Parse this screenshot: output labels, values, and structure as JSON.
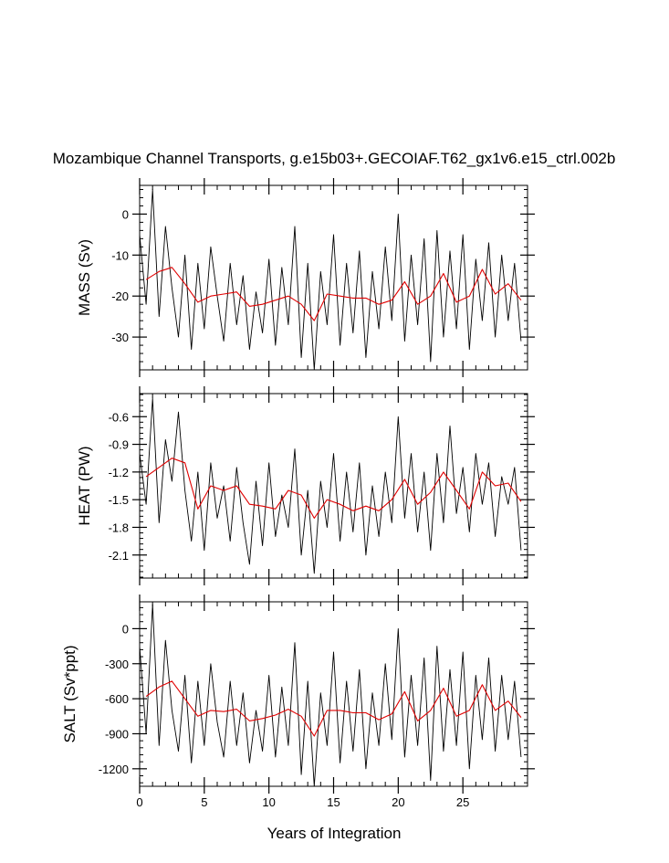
{
  "title": "Mozambique Channel Transports, g.e15b03+.GECOIAF.T62_gx1v6.e15_ctrl.002b",
  "xlabel": "Years of Integration",
  "colors": {
    "monthly": "#000000",
    "annual": "#e00000",
    "frame": "#000000"
  },
  "chart_data": [
    {
      "type": "line",
      "ylabel": "MASS (Sv)",
      "xlim": [
        0,
        30
      ],
      "ylim": [
        -38,
        7
      ],
      "yticks": [
        0,
        -10,
        -20,
        -30
      ],
      "ytick_labels": [
        "0",
        "-10",
        "-20",
        "-30"
      ],
      "xticks": [
        0,
        5,
        10,
        15,
        20,
        25
      ],
      "xtick_labels": [],
      "series": [
        {
          "key": "monthly",
          "x": [
            0.0,
            0.5,
            1.0,
            1.5,
            2.0,
            2.5,
            3.0,
            3.5,
            4.0,
            4.5,
            5.0,
            5.5,
            6.0,
            6.5,
            7.0,
            7.5,
            8.0,
            8.5,
            9.0,
            9.5,
            10.0,
            10.5,
            11.0,
            11.5,
            12.0,
            12.5,
            13.0,
            13.5,
            14.0,
            14.5,
            15.0,
            15.5,
            16.0,
            16.5,
            17.0,
            17.5,
            18.0,
            18.5,
            19.0,
            19.5,
            20.0,
            20.5,
            21.0,
            21.5,
            22.0,
            22.5,
            23.0,
            23.5,
            24.0,
            24.5,
            25.0,
            25.5,
            26.0,
            26.5,
            27.0,
            27.5,
            28.0,
            28.5,
            29.0,
            29.5
          ],
          "y": [
            -5,
            -22,
            6,
            -25,
            -3,
            -18,
            -30,
            -10,
            -33,
            -12,
            -28,
            -8,
            -20,
            -31,
            -12,
            -27,
            -15,
            -33,
            -19,
            -29,
            -11,
            -32,
            -13,
            -27,
            -3,
            -35,
            -12,
            -38,
            -14,
            -27,
            -5,
            -32,
            -12,
            -29,
            -9,
            -35,
            -14,
            -28,
            -8,
            -26,
            0,
            -31,
            -10,
            -27,
            -6,
            -36,
            -4,
            -30,
            -9,
            -28,
            -5,
            -33,
            -11,
            -26,
            -7,
            -30,
            -10,
            -26,
            -12,
            -31
          ]
        },
        {
          "key": "annual",
          "x": [
            0.5,
            1.5,
            2.5,
            3.5,
            4.5,
            5.5,
            6.5,
            7.5,
            8.5,
            9.5,
            10.5,
            11.5,
            12.5,
            13.5,
            14.5,
            15.5,
            16.5,
            17.5,
            18.5,
            19.5,
            20.5,
            21.5,
            22.5,
            23.5,
            24.5,
            25.5,
            26.5,
            27.5,
            28.5,
            29.5
          ],
          "y": [
            -16,
            -14,
            -13,
            -17,
            -21.5,
            -20,
            -19.5,
            -19,
            -22.5,
            -22,
            -21,
            -20,
            -22,
            -26,
            -19.5,
            -20,
            -20.5,
            -20.5,
            -22,
            -21,
            -16.5,
            -22,
            -20,
            -14.5,
            -21.5,
            -20,
            -13.5,
            -19.5,
            -17,
            -21
          ]
        }
      ]
    },
    {
      "type": "line",
      "ylabel": "HEAT (PW)",
      "xlim": [
        0,
        30
      ],
      "ylim": [
        -2.35,
        -0.35
      ],
      "yticks": [
        -0.6,
        -0.9,
        -1.2,
        -1.5,
        -1.8,
        -2.1
      ],
      "ytick_labels": [
        "-0.6",
        "-0.9",
        "-1.2",
        "-1.5",
        "-1.8",
        "-2.1"
      ],
      "xticks": [
        0,
        5,
        10,
        15,
        20,
        25
      ],
      "xtick_labels": [],
      "series": [
        {
          "key": "monthly",
          "x": [
            0.0,
            0.5,
            1.0,
            1.5,
            2.0,
            2.5,
            3.0,
            3.5,
            4.0,
            4.5,
            5.0,
            5.5,
            6.0,
            6.5,
            7.0,
            7.5,
            8.0,
            8.5,
            9.0,
            9.5,
            10.0,
            10.5,
            11.0,
            11.5,
            12.0,
            12.5,
            13.0,
            13.5,
            14.0,
            14.5,
            15.0,
            15.5,
            16.0,
            16.5,
            17.0,
            17.5,
            18.0,
            18.5,
            19.0,
            19.5,
            20.0,
            20.5,
            21.0,
            21.5,
            22.0,
            22.5,
            23.0,
            23.5,
            24.0,
            24.5,
            25.0,
            25.5,
            26.0,
            26.5,
            27.0,
            27.5,
            28.0,
            28.5,
            29.0,
            29.5
          ],
          "y": [
            -1.0,
            -1.55,
            -0.4,
            -1.75,
            -0.85,
            -1.3,
            -0.55,
            -1.4,
            -1.95,
            -1.2,
            -2.05,
            -1.1,
            -1.7,
            -1.35,
            -1.95,
            -1.15,
            -1.75,
            -2.2,
            -1.3,
            -2.0,
            -1.1,
            -1.9,
            -1.45,
            -1.8,
            -0.95,
            -2.1,
            -1.4,
            -2.3,
            -1.3,
            -1.8,
            -1.0,
            -1.95,
            -1.2,
            -1.85,
            -1.1,
            -2.1,
            -1.35,
            -1.9,
            -1.2,
            -1.75,
            -0.6,
            -1.7,
            -1.0,
            -1.85,
            -1.2,
            -2.05,
            -1.0,
            -1.75,
            -0.7,
            -1.65,
            -1.15,
            -1.85,
            -1.0,
            -1.55,
            -1.1,
            -1.9,
            -1.25,
            -1.55,
            -1.15,
            -2.05
          ]
        },
        {
          "key": "annual",
          "x": [
            0.5,
            1.5,
            2.5,
            3.5,
            4.5,
            5.5,
            6.5,
            7.5,
            8.5,
            9.5,
            10.5,
            11.5,
            12.5,
            13.5,
            14.5,
            15.5,
            16.5,
            17.5,
            18.5,
            19.5,
            20.5,
            21.5,
            22.5,
            23.5,
            24.5,
            25.5,
            26.5,
            27.5,
            28.5,
            29.5
          ],
          "y": [
            -1.25,
            -1.15,
            -1.05,
            -1.1,
            -1.6,
            -1.35,
            -1.4,
            -1.35,
            -1.55,
            -1.57,
            -1.6,
            -1.4,
            -1.45,
            -1.7,
            -1.5,
            -1.55,
            -1.62,
            -1.57,
            -1.62,
            -1.5,
            -1.28,
            -1.55,
            -1.42,
            -1.2,
            -1.4,
            -1.6,
            -1.2,
            -1.35,
            -1.32,
            -1.52
          ]
        }
      ]
    },
    {
      "type": "line",
      "ylabel": "SALT (Sv*ppt)",
      "xlim": [
        0,
        30
      ],
      "ylim": [
        -1350,
        230
      ],
      "yticks": [
        0,
        -300,
        -600,
        -900,
        -1200
      ],
      "ytick_labels": [
        "0",
        "-300",
        "-600",
        "-900",
        "-1200"
      ],
      "xticks": [
        0,
        5,
        10,
        15,
        20,
        25
      ],
      "xtick_labels": [
        "0",
        "5",
        "10",
        "15",
        "20",
        "25"
      ],
      "series": [
        {
          "key": "monthly",
          "x": [
            0.0,
            0.5,
            1.0,
            1.5,
            2.0,
            2.5,
            3.0,
            3.5,
            4.0,
            4.5,
            5.0,
            5.5,
            6.0,
            6.5,
            7.0,
            7.5,
            8.0,
            8.5,
            9.0,
            9.5,
            10.0,
            10.5,
            11.0,
            11.5,
            12.0,
            12.5,
            13.0,
            13.5,
            14.0,
            14.5,
            15.0,
            15.5,
            16.0,
            16.5,
            17.0,
            17.5,
            18.0,
            18.5,
            19.0,
            19.5,
            20.0,
            20.5,
            21.0,
            21.5,
            22.0,
            22.5,
            23.0,
            23.5,
            24.0,
            24.5,
            25.0,
            25.5,
            26.0,
            26.5,
            27.0,
            27.5,
            28.0,
            28.5,
            29.0,
            29.5
          ],
          "y": [
            -150,
            -900,
            210,
            -1000,
            -100,
            -700,
            -1050,
            -400,
            -1150,
            -450,
            -1000,
            -300,
            -800,
            -1100,
            -450,
            -1000,
            -550,
            -1150,
            -700,
            -1050,
            -400,
            -1100,
            -500,
            -1000,
            -120,
            -1250,
            -450,
            -1350,
            -550,
            -1000,
            -200,
            -1150,
            -450,
            -1050,
            -350,
            -1200,
            -550,
            -1000,
            -300,
            -950,
            0,
            -1100,
            -400,
            -1000,
            -250,
            -1300,
            -150,
            -1050,
            -350,
            -1000,
            -200,
            -1200,
            -400,
            -950,
            -250,
            -1050,
            -400,
            -950,
            -450,
            -1100
          ]
        },
        {
          "key": "annual",
          "x": [
            0.5,
            1.5,
            2.5,
            3.5,
            4.5,
            5.5,
            6.5,
            7.5,
            8.5,
            9.5,
            10.5,
            11.5,
            12.5,
            13.5,
            14.5,
            15.5,
            16.5,
            17.5,
            18.5,
            19.5,
            20.5,
            21.5,
            22.5,
            23.5,
            24.5,
            25.5,
            26.5,
            27.5,
            28.5,
            29.5
          ],
          "y": [
            -580,
            -500,
            -450,
            -600,
            -750,
            -700,
            -710,
            -690,
            -790,
            -770,
            -740,
            -690,
            -750,
            -920,
            -700,
            -700,
            -720,
            -720,
            -780,
            -730,
            -540,
            -790,
            -700,
            -510,
            -750,
            -700,
            -480,
            -700,
            -620,
            -760
          ]
        }
      ]
    }
  ]
}
